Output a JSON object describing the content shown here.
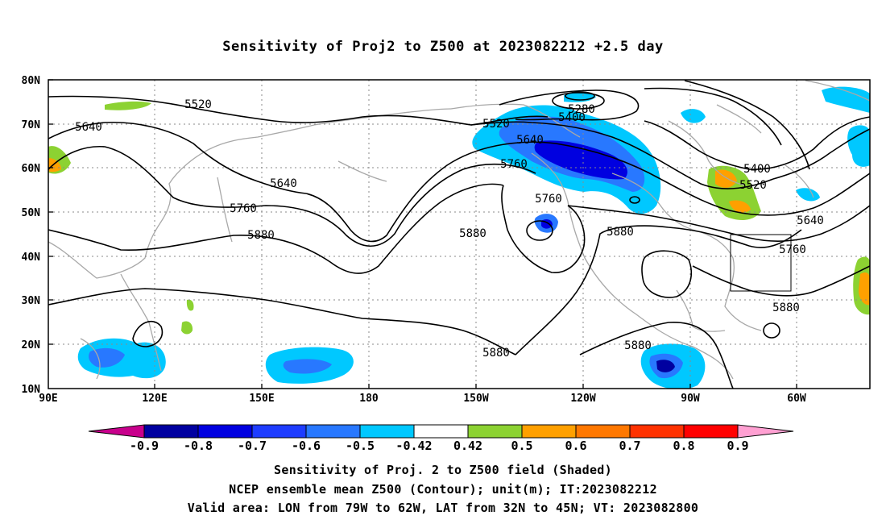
{
  "title": "Sensitivity of Proj2 to Z500 at 2023082212 +2.5 day",
  "lat_labels": [
    "80N",
    "70N",
    "60N",
    "50N",
    "40N",
    "30N",
    "20N",
    "10N"
  ],
  "lon_labels": [
    "90E",
    "120E",
    "150E",
    "180",
    "150W",
    "120W",
    "90W",
    "60W"
  ],
  "contour_labels": {
    "c5520_west": "5520",
    "c5640_west": "5640",
    "c5520_mid": "5520",
    "c5400": "5400",
    "c5280": "5280",
    "c5640_box": "5640",
    "c5760_mid": "5760",
    "c5640_pac": "5640",
    "c5760_pac": "5760",
    "c5880_pac": "5880",
    "c5760_low": "5760",
    "c5880_mid": "5880",
    "c5880_us": "5880",
    "c5880_trop": "5880",
    "c5880_gulf": "5880",
    "c5400_east": "5400",
    "c5520_east": "5520",
    "c5640_east": "5640",
    "c5760_east": "5760",
    "c5880_east": "5880"
  },
  "colorbar": {
    "labels": [
      "-0.9",
      "-0.8",
      "-0.7",
      "-0.6",
      "-0.5",
      "-0.42",
      "0.42",
      "0.5",
      "0.6",
      "0.7",
      "0.8",
      "0.9"
    ],
    "colors": [
      "#0000a0",
      "#0000e0",
      "#1e3cff",
      "#2878ff",
      "#00c8ff",
      "#ffffff",
      "#8cd232",
      "#ffa000",
      "#ff7800",
      "#ff3200",
      "#ff0000"
    ],
    "low_color": "#c8008c",
    "high_color": "#ffa0d2"
  },
  "footer": {
    "line1": "Sensitivity of Proj. 2 to Z500 field (Shaded)",
    "line2": "NCEP ensemble mean Z500 (Contour); unit(m); IT:2023082212",
    "line3": "Valid area: LON from 79W to 62W, LAT from 32N to 45N; VT: 2023082800"
  }
}
